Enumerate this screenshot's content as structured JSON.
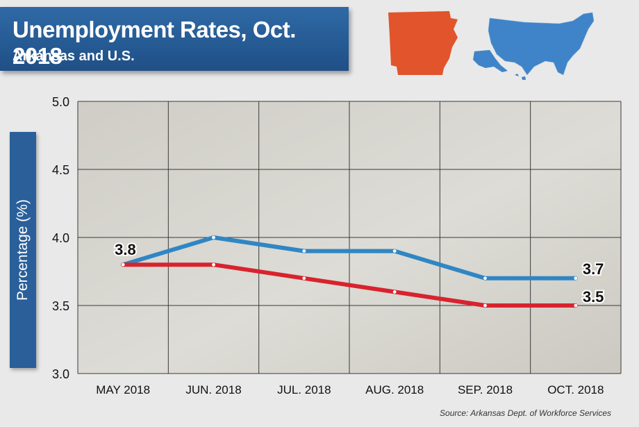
{
  "header": {
    "title": "Unemployment Rates, Oct. 2018",
    "subtitle": "Arkansas and U.S."
  },
  "source": "Source: Arkansas Dept. of Workforce Services",
  "colors": {
    "arkansas": "#d8232e",
    "us": "#2f86c4",
    "title_bg": "#2a5f9a",
    "map_arkansas": "#e1542c",
    "map_us": "#3f84c9"
  },
  "chart_data": {
    "type": "line",
    "title": "Unemployment Rates, Oct. 2018",
    "subtitle": "Arkansas and U.S.",
    "xlabel": "",
    "ylabel": "Percentage (%)",
    "categories": [
      "MAY 2018",
      "JUN. 2018",
      "JUL. 2018",
      "AUG. 2018",
      "SEP. 2018",
      "OCT. 2018"
    ],
    "ylim": [
      3.0,
      5.0
    ],
    "yticks": [
      "3.0",
      "3.5",
      "4.0",
      "4.5",
      "5.0"
    ],
    "grid": true,
    "series": [
      {
        "key": "us",
        "color": "#2f86c4",
        "values": [
          3.8,
          4.0,
          3.9,
          3.9,
          3.7,
          3.7
        ]
      },
      {
        "key": "arkansas",
        "color": "#d8232e",
        "values": [
          3.8,
          3.8,
          3.7,
          3.6,
          3.5,
          3.5
        ]
      }
    ],
    "annotations": [
      "3.8",
      "3.7",
      "3.5"
    ]
  }
}
